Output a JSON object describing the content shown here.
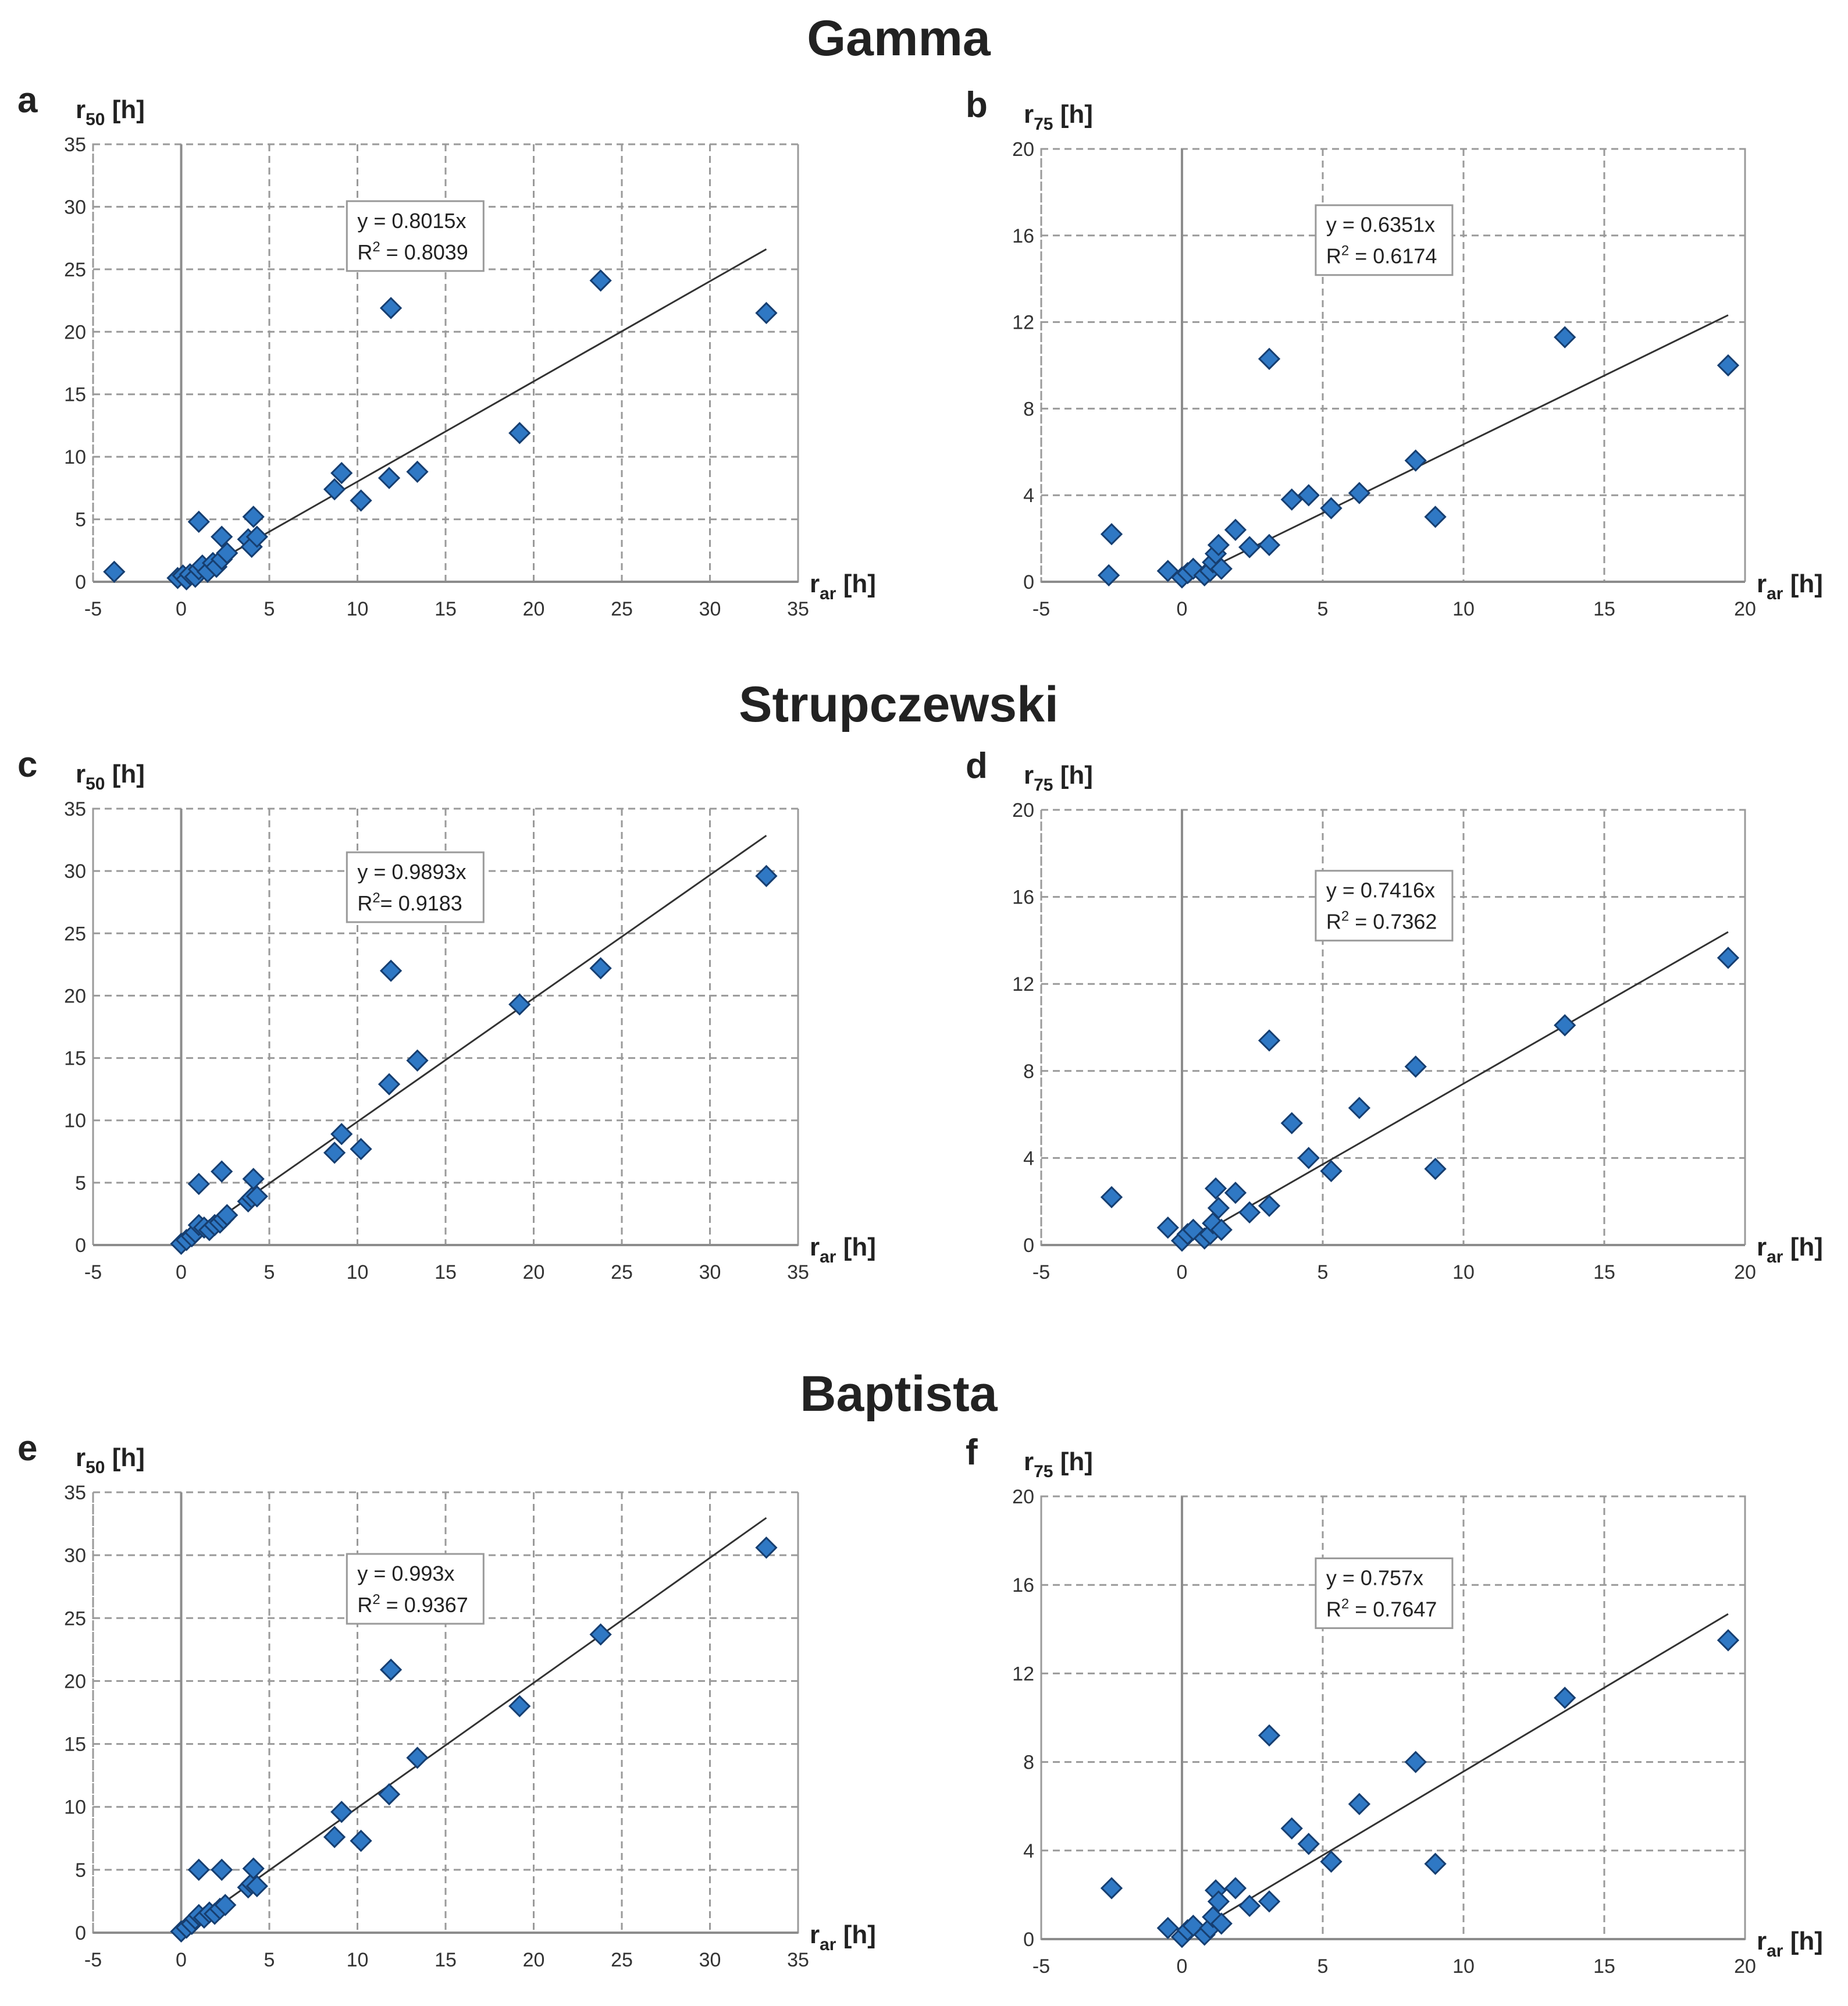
{
  "sections": [
    {
      "title": "Gamma"
    },
    {
      "title": "Strupczewski"
    },
    {
      "title": "Baptista"
    }
  ],
  "colors": {
    "marker_fill": "#2f78c4",
    "marker_stroke": "#163e70",
    "grid": "#9a9a9a",
    "trend": "#333333"
  },
  "chart_data": [
    {
      "panel": "a",
      "type": "scatter",
      "title": "Gamma",
      "ylabel": {
        "main": "r",
        "sub": "50",
        "unit": "[h]"
      },
      "xlabel": {
        "main": "r",
        "sub": "ar",
        "unit": "[h]"
      },
      "xlim": [
        -5,
        35
      ],
      "ylim": [
        0,
        35
      ],
      "xticks": [
        -5,
        0,
        5,
        10,
        15,
        20,
        25,
        30,
        35
      ],
      "yticks": [
        0,
        5,
        10,
        15,
        20,
        25,
        30,
        35
      ],
      "trendline": {
        "slope": 0.8015,
        "x_end": 33.2,
        "equation": "y = 0.8015x",
        "r2_label": "R",
        "r2_sup": "2",
        "r2_value": " = 0.8039"
      },
      "points": [
        [
          -3.8,
          0.8
        ],
        [
          -0.2,
          0.3
        ],
        [
          0.1,
          0.5
        ],
        [
          0.3,
          0.2
        ],
        [
          0.5,
          0.6
        ],
        [
          0.8,
          0.4
        ],
        [
          1.0,
          1.0
        ],
        [
          1.0,
          4.8
        ],
        [
          1.2,
          1.3
        ],
        [
          1.5,
          0.8
        ],
        [
          1.8,
          1.5
        ],
        [
          2.0,
          1.2
        ],
        [
          2.3,
          1.8
        ],
        [
          2.3,
          3.6
        ],
        [
          2.6,
          2.3
        ],
        [
          3.8,
          3.4
        ],
        [
          4.0,
          2.8
        ],
        [
          4.1,
          5.2
        ],
        [
          4.3,
          3.6
        ],
        [
          8.7,
          7.4
        ],
        [
          9.1,
          8.7
        ],
        [
          10.2,
          6.5
        ],
        [
          11.8,
          8.3
        ],
        [
          11.9,
          21.9
        ],
        [
          13.4,
          8.8
        ],
        [
          19.2,
          11.9
        ],
        [
          23.8,
          24.1
        ],
        [
          33.2,
          21.5
        ]
      ]
    },
    {
      "panel": "b",
      "type": "scatter",
      "title": "Gamma",
      "ylabel": {
        "main": "r",
        "sub": "75",
        "unit": "[h]"
      },
      "xlabel": {
        "main": "r",
        "sub": "ar",
        "unit": "[h]"
      },
      "xlim": [
        -5,
        20
      ],
      "ylim": [
        0,
        20
      ],
      "xticks": [
        -5,
        0,
        5,
        10,
        15,
        20
      ],
      "yticks": [
        0,
        4,
        8,
        12,
        16,
        20
      ],
      "trendline": {
        "slope": 0.6351,
        "x_end": 19.4,
        "equation": "y = 0.6351x",
        "r2_label": "R",
        "r2_sup": "2",
        "r2_value": " = 0.6174",
        "bold": true
      },
      "points": [
        [
          -2.5,
          2.2
        ],
        [
          -2.6,
          0.3
        ],
        [
          -0.5,
          0.5
        ],
        [
          0.0,
          0.2
        ],
        [
          0.2,
          0.4
        ],
        [
          0.4,
          0.6
        ],
        [
          0.8,
          0.3
        ],
        [
          1.0,
          0.5
        ],
        [
          1.1,
          0.9
        ],
        [
          1.2,
          1.3
        ],
        [
          1.3,
          1.7
        ],
        [
          1.4,
          0.6
        ],
        [
          1.9,
          2.4
        ],
        [
          2.4,
          1.6
        ],
        [
          3.1,
          10.3
        ],
        [
          3.1,
          1.7
        ],
        [
          3.9,
          3.8
        ],
        [
          4.5,
          4.0
        ],
        [
          5.3,
          3.4
        ],
        [
          6.3,
          4.1
        ],
        [
          8.3,
          5.6
        ],
        [
          9.0,
          3.0
        ],
        [
          13.6,
          11.3
        ],
        [
          19.4,
          10.0
        ]
      ]
    },
    {
      "panel": "c",
      "type": "scatter",
      "title": "Strupczewski",
      "ylabel": {
        "main": "r",
        "sub": "50",
        "unit": "[h]"
      },
      "xlabel": {
        "main": "r",
        "sub": "ar",
        "unit": "[h]"
      },
      "xlim": [
        -5,
        35
      ],
      "ylim": [
        0,
        35
      ],
      "xticks": [
        -5,
        0,
        5,
        10,
        15,
        20,
        25,
        30,
        35
      ],
      "yticks": [
        0,
        5,
        10,
        15,
        20,
        25,
        30,
        35
      ],
      "trendline": {
        "slope": 0.9893,
        "x_end": 33.2,
        "equation": "y = 0.9893x",
        "r2_label": "R",
        "r2_sup": "2",
        "r2_value": "= 0.9183"
      },
      "points": [
        [
          0.0,
          0.1
        ],
        [
          0.3,
          0.4
        ],
        [
          0.6,
          0.7
        ],
        [
          0.8,
          1.0
        ],
        [
          1.0,
          1.6
        ],
        [
          1.0,
          4.9
        ],
        [
          1.3,
          1.4
        ],
        [
          1.6,
          1.2
        ],
        [
          1.9,
          1.6
        ],
        [
          2.2,
          1.8
        ],
        [
          2.4,
          2.1
        ],
        [
          2.3,
          5.9
        ],
        [
          2.6,
          2.4
        ],
        [
          3.8,
          3.5
        ],
        [
          4.0,
          3.8
        ],
        [
          4.1,
          5.3
        ],
        [
          4.3,
          3.9
        ],
        [
          8.7,
          7.4
        ],
        [
          9.1,
          8.9
        ],
        [
          10.2,
          7.7
        ],
        [
          11.8,
          12.9
        ],
        [
          11.9,
          22.0
        ],
        [
          13.4,
          14.8
        ],
        [
          19.2,
          19.3
        ],
        [
          23.8,
          22.2
        ],
        [
          33.2,
          29.6
        ]
      ]
    },
    {
      "panel": "d",
      "type": "scatter",
      "title": "Strupczewski",
      "ylabel": {
        "main": "r",
        "sub": "75",
        "unit": "[h]"
      },
      "xlabel": {
        "main": "r",
        "sub": "ar",
        "unit": "[h]"
      },
      "xlim": [
        -5,
        20
      ],
      "ylim": [
        0,
        20
      ],
      "xticks": [
        -5,
        0,
        5,
        10,
        15,
        20
      ],
      "yticks": [
        0,
        4,
        8,
        12,
        16,
        20
      ],
      "trendline": {
        "slope": 0.7416,
        "x_end": 19.4,
        "equation": "y = 0.7416x",
        "r2_label": "R",
        "r2_sup": "2",
        "r2_value": " = 0.7362"
      },
      "points": [
        [
          -2.5,
          2.2
        ],
        [
          -0.5,
          0.8
        ],
        [
          0.0,
          0.2
        ],
        [
          0.2,
          0.5
        ],
        [
          0.4,
          0.7
        ],
        [
          0.8,
          0.3
        ],
        [
          1.0,
          0.5
        ],
        [
          1.1,
          1.0
        ],
        [
          1.2,
          2.6
        ],
        [
          1.3,
          1.7
        ],
        [
          1.4,
          0.7
        ],
        [
          1.9,
          2.4
        ],
        [
          2.4,
          1.5
        ],
        [
          3.1,
          9.4
        ],
        [
          3.1,
          1.8
        ],
        [
          3.9,
          5.6
        ],
        [
          4.5,
          4.0
        ],
        [
          5.3,
          3.4
        ],
        [
          6.3,
          6.3
        ],
        [
          8.3,
          8.2
        ],
        [
          9.0,
          3.5
        ],
        [
          13.6,
          10.1
        ],
        [
          19.4,
          13.2
        ]
      ]
    },
    {
      "panel": "e",
      "type": "scatter",
      "title": "Baptista",
      "ylabel": {
        "main": "r",
        "sub": "50",
        "unit": "[h]"
      },
      "xlabel": {
        "main": "r",
        "sub": "ar",
        "unit": "[h]"
      },
      "xlim": [
        -5,
        35
      ],
      "ylim": [
        0,
        35
      ],
      "xticks": [
        -5,
        0,
        5,
        10,
        15,
        20,
        25,
        30,
        35
      ],
      "yticks": [
        0,
        5,
        10,
        15,
        20,
        25,
        30,
        35
      ],
      "trendline": {
        "slope": 0.993,
        "x_end": 33.2,
        "equation": "y = 0.993x",
        "r2_label": "R",
        "r2_sup": "2",
        "r2_value": " = 0.9367"
      },
      "points": [
        [
          0.0,
          0.1
        ],
        [
          0.3,
          0.4
        ],
        [
          0.6,
          0.7
        ],
        [
          0.8,
          1.1
        ],
        [
          1.0,
          1.4
        ],
        [
          1.0,
          5.0
        ],
        [
          1.3,
          1.2
        ],
        [
          1.6,
          1.6
        ],
        [
          1.9,
          1.5
        ],
        [
          2.2,
          1.9
        ],
        [
          2.3,
          5.0
        ],
        [
          2.5,
          2.2
        ],
        [
          3.8,
          3.6
        ],
        [
          4.0,
          3.9
        ],
        [
          4.1,
          5.1
        ],
        [
          4.3,
          3.7
        ],
        [
          8.7,
          7.6
        ],
        [
          9.1,
          9.6
        ],
        [
          10.2,
          7.3
        ],
        [
          11.8,
          11.0
        ],
        [
          11.9,
          20.9
        ],
        [
          13.4,
          13.9
        ],
        [
          19.2,
          18.0
        ],
        [
          23.8,
          23.7
        ],
        [
          33.2,
          30.6
        ]
      ]
    },
    {
      "panel": "f",
      "type": "scatter",
      "title": "Baptista",
      "ylabel": {
        "main": "r",
        "sub": "75",
        "unit": "[h]"
      },
      "xlabel": {
        "main": "r",
        "sub": "ar",
        "unit": "[h]"
      },
      "xlim": [
        -5,
        20
      ],
      "ylim": [
        0,
        20
      ],
      "xticks": [
        -5,
        0,
        5,
        10,
        15,
        20
      ],
      "yticks": [
        0,
        4,
        8,
        12,
        16,
        20
      ],
      "trendline": {
        "slope": 0.757,
        "x_end": 19.4,
        "equation": "y = 0.757x",
        "r2_label": "R",
        "r2_sup": "2",
        "r2_value": " = 0.7647"
      },
      "points": [
        [
          -2.5,
          2.3
        ],
        [
          -0.5,
          0.5
        ],
        [
          0.0,
          0.1
        ],
        [
          0.2,
          0.4
        ],
        [
          0.4,
          0.6
        ],
        [
          0.8,
          0.2
        ],
        [
          1.0,
          0.5
        ],
        [
          1.1,
          1.0
        ],
        [
          1.2,
          2.2
        ],
        [
          1.3,
          1.7
        ],
        [
          1.4,
          0.7
        ],
        [
          1.9,
          2.3
        ],
        [
          2.4,
          1.5
        ],
        [
          3.1,
          9.2
        ],
        [
          3.1,
          1.7
        ],
        [
          3.9,
          5.0
        ],
        [
          4.5,
          4.3
        ],
        [
          5.3,
          3.5
        ],
        [
          6.3,
          6.1
        ],
        [
          8.3,
          8.0
        ],
        [
          9.0,
          3.4
        ],
        [
          13.6,
          10.9
        ],
        [
          19.4,
          13.5
        ]
      ]
    }
  ]
}
